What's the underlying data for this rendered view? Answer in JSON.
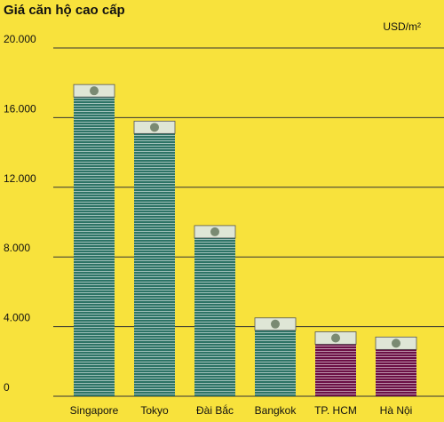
{
  "chart_data": {
    "type": "bar",
    "title": "Giá căn hộ cao cấp",
    "unit_label": "USD/m²",
    "categories": [
      "Singapore",
      "Tokyo",
      "Đài Bắc",
      "Bangkok",
      "TP. HCM",
      "Hà Nội"
    ],
    "values": [
      17900,
      15800,
      9800,
      4500,
      3700,
      3400
    ],
    "colors": [
      "#2c7365",
      "#2c7365",
      "#2c7365",
      "#2c7365",
      "#6b0f45",
      "#6b0f45"
    ],
    "ylim": [
      0,
      20000
    ],
    "yticks": [
      0,
      {
        "value": 4000,
        "label": "4.000"
      },
      {
        "value": 8000,
        "label": "8.000"
      },
      {
        "value": 12000,
        "label": "12.000"
      },
      {
        "value": 16000,
        "label": "16.000"
      },
      {
        "value": 20000,
        "label": "20.000"
      }
    ],
    "grid": true
  }
}
